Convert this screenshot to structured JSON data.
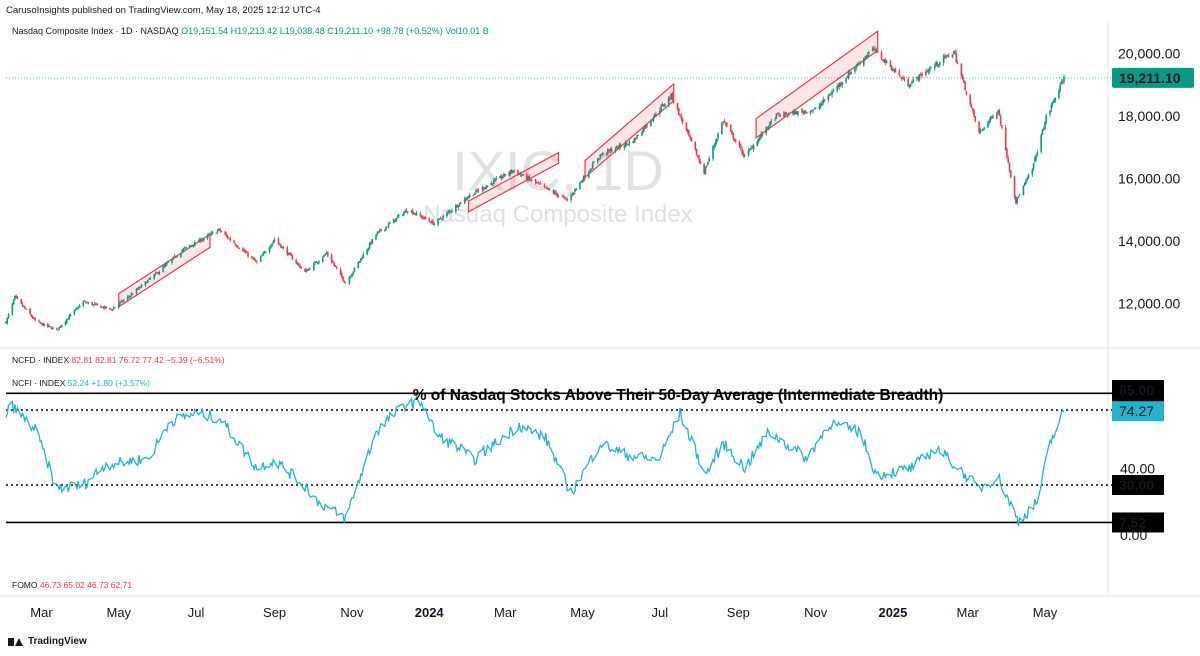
{
  "publisher_line": "CarusoInsights published on TradingView.com, May 18, 2025 12:12 UTC-4",
  "legend": {
    "symbol": "Nasdaq Composite Index · 1D · NASDAQ",
    "open": "O19,151.54",
    "high": "H19,213.42",
    "low": "L19,038.48",
    "close": "C19,211.10",
    "change": "+98.78 (+0.52%)",
    "vol": "Vol10.01 B"
  },
  "watermark": {
    "ticker": "IXIC, 1D",
    "name": "Nasdaq Composite Index"
  },
  "ncfd": {
    "label": "NCFD · INDEX",
    "values": "82.81  82.81  76.72  77.42  −5.39 (−6.51%)"
  },
  "ncfi": {
    "label": "NCFI · INDEX",
    "values": "52.24  +1.80 (+3.57%)"
  },
  "fomo": {
    "label": "FOMO",
    "values": "46.73  65.02  46.73  62.71"
  },
  "brand": "TradingView",
  "colors": {
    "up": "#089981",
    "down": "#f23645",
    "breadth": "#26b3c9",
    "box": "#f23645"
  },
  "chart_data": [
    {
      "type": "candlestick",
      "title": "Nasdaq Composite Index",
      "y_ticks": [
        "20,000.00",
        "18,000.00",
        "16,000.00",
        "14,000.00",
        "12,000.00"
      ],
      "last_price_label": "19,211.10",
      "last_price": 19211.1,
      "ylim": [
        10700,
        21000
      ],
      "x_tick_labels": [
        "Mar",
        "May",
        "Jul",
        "Sep",
        "Nov",
        "2024",
        "Mar",
        "May",
        "Jul",
        "Sep",
        "Nov",
        "2025",
        "Mar",
        "May"
      ],
      "x_tick_dates": [
        "2023-03-01",
        "2023-05-01",
        "2023-07-01",
        "2023-09-01",
        "2023-11-01",
        "2024-01-01",
        "2024-03-01",
        "2024-05-01",
        "2024-07-01",
        "2024-09-01",
        "2024-11-01",
        "2025-01-01",
        "2025-03-01",
        "2025-05-01"
      ],
      "xlim": [
        "2023-02-01",
        "2025-06-15"
      ],
      "close_path": [
        {
          "x": "2023-02-01",
          "y": 11400
        },
        {
          "x": "2023-02-08",
          "y": 12200
        },
        {
          "x": "2023-02-25",
          "y": 11400
        },
        {
          "x": "2023-03-13",
          "y": 11150
        },
        {
          "x": "2023-04-03",
          "y": 12050
        },
        {
          "x": "2023-04-25",
          "y": 11800
        },
        {
          "x": "2023-05-10",
          "y": 12250
        },
        {
          "x": "2023-06-01",
          "y": 13000
        },
        {
          "x": "2023-06-20",
          "y": 13700
        },
        {
          "x": "2023-07-19",
          "y": 14350
        },
        {
          "x": "2023-08-18",
          "y": 13300
        },
        {
          "x": "2023-09-01",
          "y": 14050
        },
        {
          "x": "2023-09-25",
          "y": 13000
        },
        {
          "x": "2023-10-12",
          "y": 13600
        },
        {
          "x": "2023-10-27",
          "y": 12650
        },
        {
          "x": "2023-11-20",
          "y": 14200
        },
        {
          "x": "2023-12-15",
          "y": 15000
        },
        {
          "x": "2024-01-05",
          "y": 14550
        },
        {
          "x": "2024-01-31",
          "y": 15400
        },
        {
          "x": "2024-03-07",
          "y": 16250
        },
        {
          "x": "2024-04-19",
          "y": 15300
        },
        {
          "x": "2024-05-15",
          "y": 16750
        },
        {
          "x": "2024-06-10",
          "y": 17200
        },
        {
          "x": "2024-07-10",
          "y": 18650
        },
        {
          "x": "2024-08-05",
          "y": 16200
        },
        {
          "x": "2024-08-20",
          "y": 17850
        },
        {
          "x": "2024-09-06",
          "y": 16700
        },
        {
          "x": "2024-10-01",
          "y": 18000
        },
        {
          "x": "2024-11-01",
          "y": 18200
        },
        {
          "x": "2024-12-16",
          "y": 20150
        },
        {
          "x": "2025-01-13",
          "y": 19000
        },
        {
          "x": "2025-02-18",
          "y": 20050
        },
        {
          "x": "2025-03-10",
          "y": 17450
        },
        {
          "x": "2025-03-25",
          "y": 18200
        },
        {
          "x": "2025-04-08",
          "y": 15250
        },
        {
          "x": "2025-04-21",
          "y": 16300
        },
        {
          "x": "2025-05-02",
          "y": 17950
        },
        {
          "x": "2025-05-16",
          "y": 19211
        }
      ],
      "highlight_boxes": [
        {
          "start": "2023-05-01",
          "end": "2023-07-12",
          "from": 12100,
          "to": 14000
        },
        {
          "start": "2024-02-01",
          "end": "2024-04-12",
          "from": 15100,
          "to": 16650
        },
        {
          "start": "2024-05-03",
          "end": "2024-07-12",
          "from": 16300,
          "to": 18750
        },
        {
          "start": "2024-09-15",
          "end": "2024-12-20",
          "from": 17600,
          "to": 20400
        }
      ]
    },
    {
      "type": "line",
      "title": "% of Nasdaq Stocks Above Their 50-Day Average (Intermediate Breadth)",
      "series": [
        {
          "values_path": [
            {
              "x": "2023-02-01",
              "y": 72
            },
            {
              "x": "2023-02-05",
              "y": 78
            },
            {
              "x": "2023-02-25",
              "y": 62
            },
            {
              "x": "2023-03-13",
              "y": 28
            },
            {
              "x": "2023-04-03",
              "y": 30
            },
            {
              "x": "2023-04-20",
              "y": 42
            },
            {
              "x": "2023-05-25",
              "y": 46
            },
            {
              "x": "2023-06-10",
              "y": 68
            },
            {
              "x": "2023-06-30",
              "y": 73
            },
            {
              "x": "2023-07-20",
              "y": 70
            },
            {
              "x": "2023-08-18",
              "y": 40
            },
            {
              "x": "2023-09-01",
              "y": 45
            },
            {
              "x": "2023-09-27",
              "y": 28
            },
            {
              "x": "2023-10-05",
              "y": 20
            },
            {
              "x": "2023-10-27",
              "y": 10
            },
            {
              "x": "2023-11-10",
              "y": 40
            },
            {
              "x": "2023-11-20",
              "y": 62
            },
            {
              "x": "2023-12-12",
              "y": 78
            },
            {
              "x": "2023-12-26",
              "y": 80
            },
            {
              "x": "2024-01-07",
              "y": 60
            },
            {
              "x": "2024-01-25",
              "y": 52
            },
            {
              "x": "2024-02-05",
              "y": 45
            },
            {
              "x": "2024-03-12",
              "y": 66
            },
            {
              "x": "2024-04-02",
              "y": 58
            },
            {
              "x": "2024-04-22",
              "y": 25
            },
            {
              "x": "2024-05-15",
              "y": 55
            },
            {
              "x": "2024-06-05",
              "y": 48
            },
            {
              "x": "2024-06-30",
              "y": 45
            },
            {
              "x": "2024-07-17",
              "y": 73
            },
            {
              "x": "2024-08-06",
              "y": 36
            },
            {
              "x": "2024-08-20",
              "y": 55
            },
            {
              "x": "2024-09-06",
              "y": 40
            },
            {
              "x": "2024-09-25",
              "y": 62
            },
            {
              "x": "2024-10-25",
              "y": 46
            },
            {
              "x": "2024-11-12",
              "y": 67
            },
            {
              "x": "2024-12-06",
              "y": 62
            },
            {
              "x": "2024-12-19",
              "y": 36
            },
            {
              "x": "2025-01-15",
              "y": 40
            },
            {
              "x": "2025-02-05",
              "y": 52
            },
            {
              "x": "2025-02-15",
              "y": 45
            },
            {
              "x": "2025-03-10",
              "y": 28
            },
            {
              "x": "2025-03-25",
              "y": 35
            },
            {
              "x": "2025-04-10",
              "y": 8
            },
            {
              "x": "2025-04-25",
              "y": 20
            },
            {
              "x": "2025-05-05",
              "y": 55
            },
            {
              "x": "2025-05-16",
              "y": 74.27
            }
          ]
        }
      ],
      "y_ticks": [
        "85.00",
        "75.00",
        "74.27",
        "40.00",
        "30.00",
        "7.52",
        "0.00"
      ],
      "reference_lines": [
        {
          "value": 85,
          "style": "solid",
          "label": "85.00"
        },
        {
          "value": 75,
          "style": "dotted",
          "label": "75.00"
        },
        {
          "value": 30,
          "style": "dotted",
          "label": "30.00"
        },
        {
          "value": 7.52,
          "style": "solid",
          "label": "7.52"
        }
      ],
      "last_value_label": "74.27",
      "last_value": 74.27,
      "ylim": [
        0,
        90
      ]
    }
  ]
}
